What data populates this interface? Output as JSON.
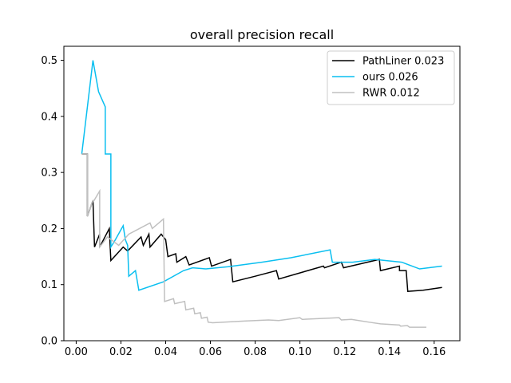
{
  "chart_data": {
    "type": "line",
    "title": "overall precision recall",
    "xlabel": "",
    "ylabel": "",
    "xlim": [
      -0.0055,
      0.1715
    ],
    "ylim": [
      0.0,
      0.525
    ],
    "xticks": [
      0.0,
      0.02,
      0.04,
      0.06,
      0.08,
      0.1,
      0.12,
      0.14,
      0.16
    ],
    "xtick_labels": [
      "0.00",
      "0.02",
      "0.04",
      "0.06",
      "0.08",
      "0.10",
      "0.12",
      "0.14",
      "0.16"
    ],
    "yticks": [
      0.0,
      0.1,
      0.2,
      0.3,
      0.4,
      0.5
    ],
    "ytick_labels": [
      "0.0",
      "0.1",
      "0.2",
      "0.3",
      "0.4",
      "0.5"
    ],
    "grid": false,
    "legend_position": "top-right",
    "series": [
      {
        "name": "PathLiner 0.023",
        "color": "#000000",
        "points": [
          [
            0.0025,
            0.333
          ],
          [
            0.005,
            0.333
          ],
          [
            0.005,
            0.222
          ],
          [
            0.0075,
            0.25
          ],
          [
            0.0082,
            0.167
          ],
          [
            0.0105,
            0.19
          ],
          [
            0.0105,
            0.167
          ],
          [
            0.0148,
            0.2
          ],
          [
            0.0155,
            0.143
          ],
          [
            0.021,
            0.167
          ],
          [
            0.023,
            0.16
          ],
          [
            0.029,
            0.185
          ],
          [
            0.03,
            0.17
          ],
          [
            0.0325,
            0.19
          ],
          [
            0.033,
            0.167
          ],
          [
            0.038,
            0.19
          ],
          [
            0.04,
            0.18
          ],
          [
            0.041,
            0.15
          ],
          [
            0.0445,
            0.155
          ],
          [
            0.045,
            0.14
          ],
          [
            0.049,
            0.15
          ],
          [
            0.0505,
            0.135
          ],
          [
            0.0595,
            0.148
          ],
          [
            0.0605,
            0.133
          ],
          [
            0.069,
            0.145
          ],
          [
            0.07,
            0.105
          ],
          [
            0.08,
            0.115
          ],
          [
            0.0895,
            0.125
          ],
          [
            0.0905,
            0.11
          ],
          [
            0.1105,
            0.133
          ],
          [
            0.111,
            0.13
          ],
          [
            0.1185,
            0.14
          ],
          [
            0.1195,
            0.13
          ],
          [
            0.1355,
            0.145
          ],
          [
            0.136,
            0.125
          ],
          [
            0.1445,
            0.133
          ],
          [
            0.1445,
            0.125
          ],
          [
            0.1475,
            0.125
          ],
          [
            0.1482,
            0.088
          ],
          [
            0.155,
            0.09
          ],
          [
            0.1635,
            0.095
          ]
        ]
      },
      {
        "name": "ours 0.026",
        "color": "#0abff0",
        "points": [
          [
            0.0025,
            0.333
          ],
          [
            0.0075,
            0.5
          ],
          [
            0.01,
            0.444
          ],
          [
            0.013,
            0.417
          ],
          [
            0.013,
            0.333
          ],
          [
            0.0155,
            0.333
          ],
          [
            0.0155,
            0.167
          ],
          [
            0.0175,
            0.18
          ],
          [
            0.021,
            0.205
          ],
          [
            0.022,
            0.18
          ],
          [
            0.023,
            0.17
          ],
          [
            0.0235,
            0.115
          ],
          [
            0.0265,
            0.125
          ],
          [
            0.028,
            0.09
          ],
          [
            0.039,
            0.105
          ],
          [
            0.048,
            0.125
          ],
          [
            0.052,
            0.13
          ],
          [
            0.058,
            0.128
          ],
          [
            0.068,
            0.132
          ],
          [
            0.083,
            0.14
          ],
          [
            0.096,
            0.148
          ],
          [
            0.1135,
            0.162
          ],
          [
            0.1145,
            0.14
          ],
          [
            0.1235,
            0.14
          ],
          [
            0.1335,
            0.145
          ],
          [
            0.1455,
            0.14
          ],
          [
            0.1535,
            0.128
          ],
          [
            0.1635,
            0.133
          ]
        ]
      },
      {
        "name": "RWR 0.012",
        "color": "#c0c0c0",
        "points": [
          [
            0.0025,
            0.333
          ],
          [
            0.005,
            0.333
          ],
          [
            0.005,
            0.222
          ],
          [
            0.0075,
            0.25
          ],
          [
            0.008,
            0.25
          ],
          [
            0.0105,
            0.267
          ],
          [
            0.0105,
            0.167
          ],
          [
            0.014,
            0.185
          ],
          [
            0.019,
            0.17
          ],
          [
            0.0235,
            0.19
          ],
          [
            0.033,
            0.21
          ],
          [
            0.034,
            0.2
          ],
          [
            0.039,
            0.217
          ],
          [
            0.0395,
            0.07
          ],
          [
            0.0435,
            0.075
          ],
          [
            0.044,
            0.066
          ],
          [
            0.0485,
            0.07
          ],
          [
            0.049,
            0.055
          ],
          [
            0.0525,
            0.058
          ],
          [
            0.053,
            0.048
          ],
          [
            0.0555,
            0.05
          ],
          [
            0.056,
            0.04
          ],
          [
            0.0585,
            0.042
          ],
          [
            0.059,
            0.033
          ],
          [
            0.061,
            0.032
          ],
          [
            0.075,
            0.035
          ],
          [
            0.086,
            0.037
          ],
          [
            0.0905,
            0.036
          ],
          [
            0.1,
            0.041
          ],
          [
            0.101,
            0.038
          ],
          [
            0.1175,
            0.041
          ],
          [
            0.1185,
            0.037
          ],
          [
            0.123,
            0.038
          ],
          [
            0.131,
            0.033
          ],
          [
            0.136,
            0.03
          ],
          [
            0.1445,
            0.028
          ],
          [
            0.145,
            0.026
          ],
          [
            0.148,
            0.027
          ],
          [
            0.149,
            0.024
          ],
          [
            0.1565,
            0.024
          ]
        ]
      }
    ]
  }
}
